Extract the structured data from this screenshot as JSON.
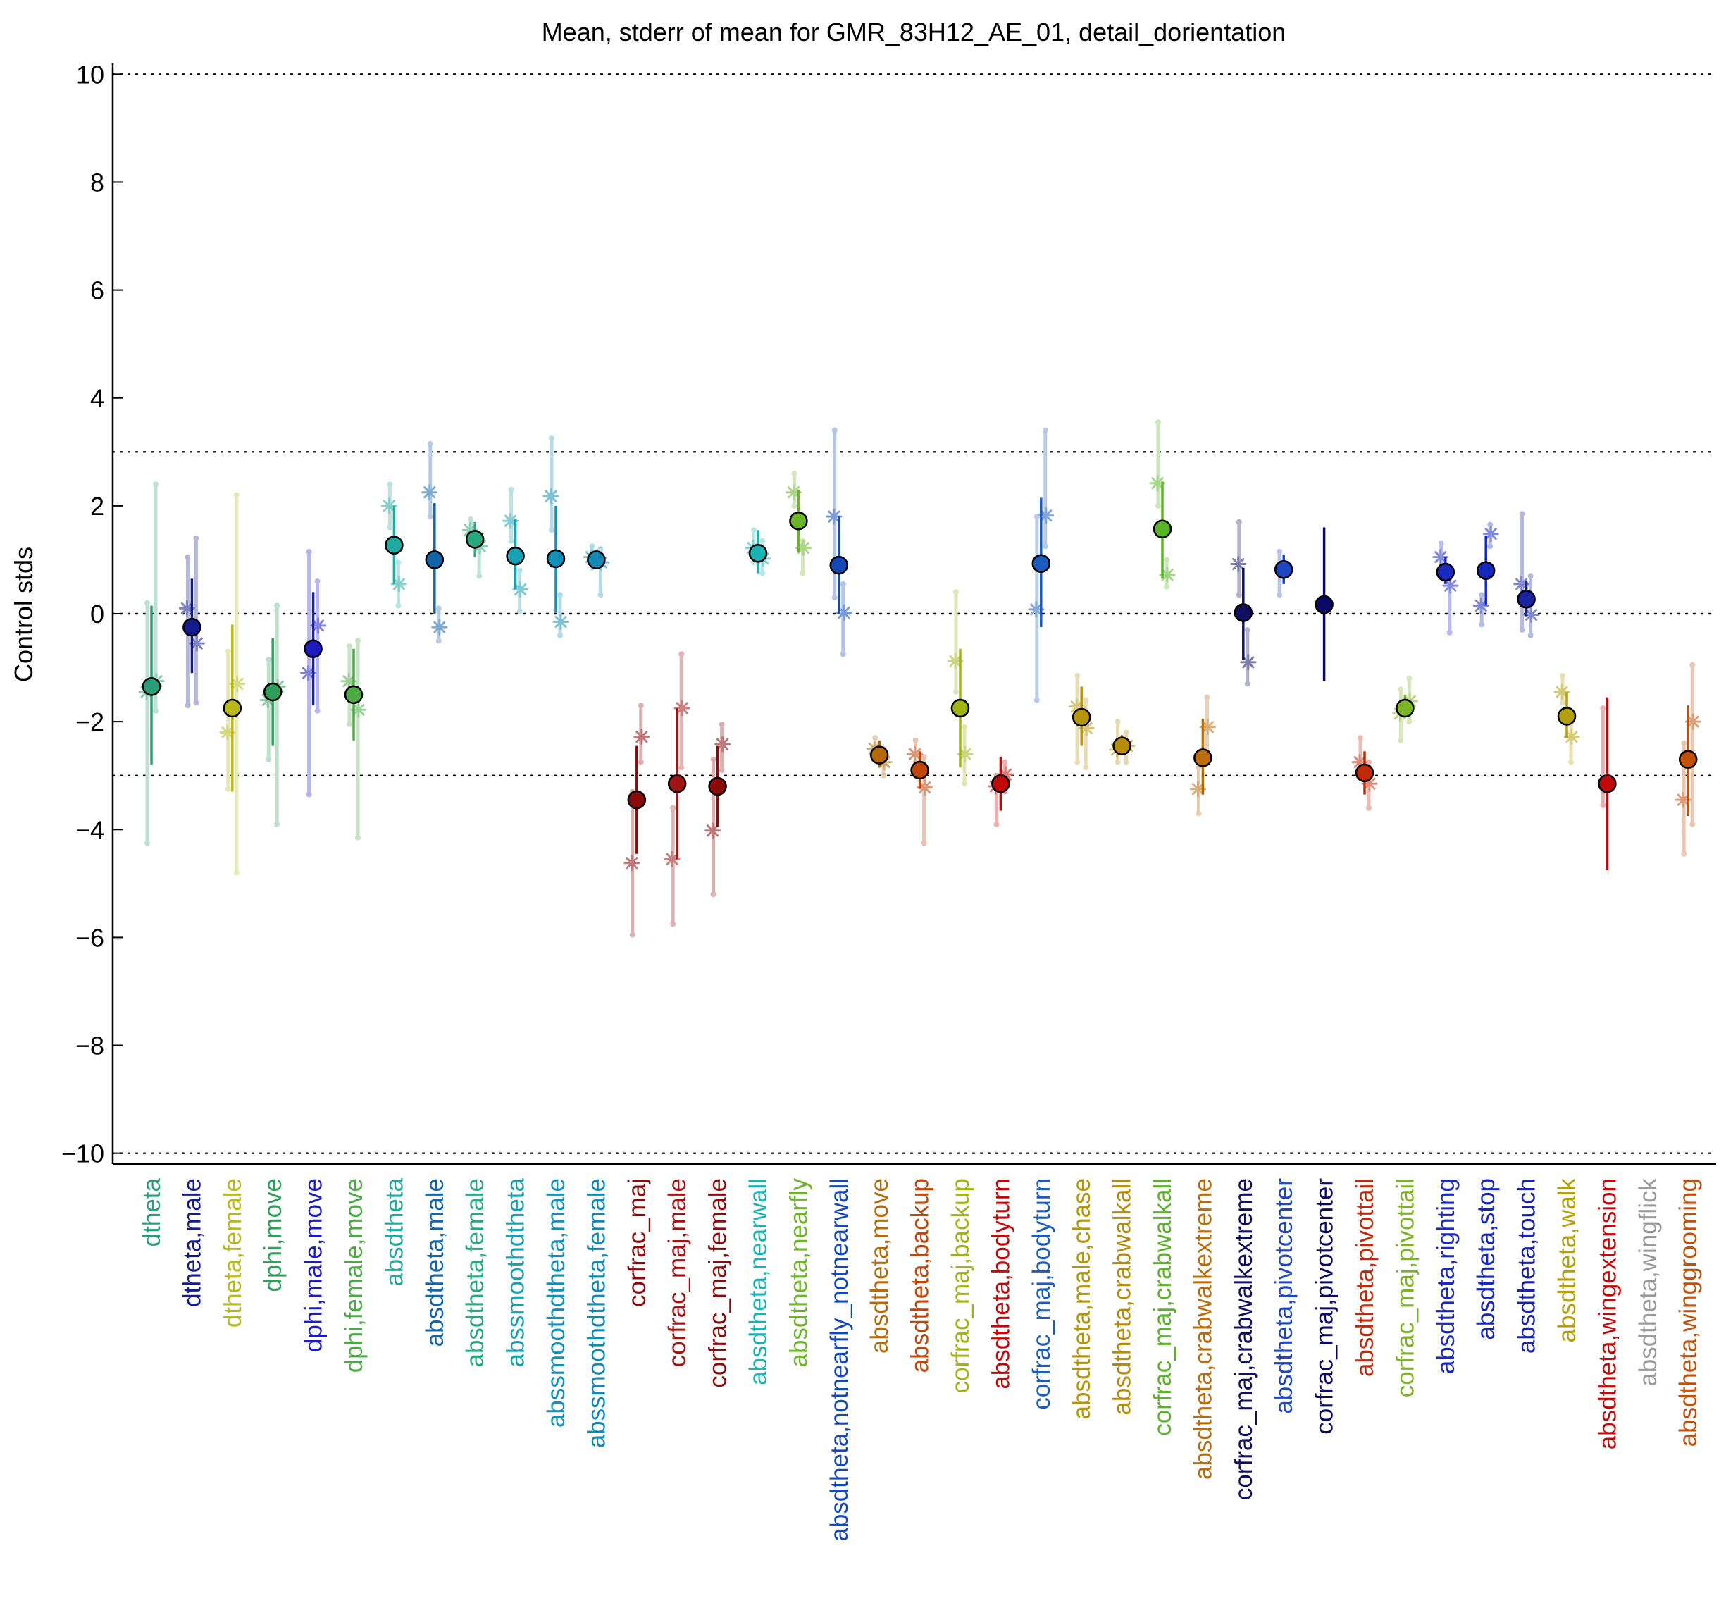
{
  "chart_data": {
    "type": "scatter",
    "title": "Mean, stderr of mean for GMR_83H12_AE_01, detail_dorientation",
    "ylabel": "Control stds",
    "xlabel": "",
    "ylim": [
      -10.2,
      10.2
    ],
    "yticks": [
      -10,
      -8,
      -6,
      -4,
      -2,
      0,
      2,
      4,
      6,
      8,
      10
    ],
    "ytick_labels": [
      "−10",
      "−8",
      "−6",
      "−4",
      "−2",
      "0",
      "2",
      "4",
      "6",
      "8",
      "10"
    ],
    "reference_lines": [
      -10,
      -3,
      0,
      3,
      10
    ],
    "grid": false,
    "legend": "none",
    "categories": [
      "dtheta",
      "dtheta,male",
      "dtheta,female",
      "dphi,move",
      "dphi,male,move",
      "dphi,female,move",
      "absdtheta",
      "absdtheta,male",
      "absdtheta,female",
      "abssmoothdtheta",
      "abssmoothdtheta,male",
      "abssmoothdtheta,female",
      "corfrac_maj",
      "corfrac_maj,male",
      "corfrac_maj,female",
      "absdtheta,nearwall",
      "absdtheta,nearfly",
      "absdtheta,notnearfly_notnearwall",
      "absdtheta,move",
      "absdtheta,backup",
      "corfrac_maj,backup",
      "absdtheta,bodyturn",
      "corfrac_maj,bodyturn",
      "absdtheta,male,chase",
      "absdtheta,crabwalkall",
      "corfrac_maj,crabwalkall",
      "absdtheta,crabwalkextreme",
      "corfrac_maj,crabwalkextreme",
      "absdtheta,pivotcenter",
      "corfrac_maj,pivotcenter",
      "absdtheta,pivottail",
      "corfrac_maj,pivottail",
      "absdtheta,righting",
      "absdtheta,stop",
      "absdtheta,touch",
      "absdtheta,walk",
      "absdtheta,wingextension",
      "absdtheta,wingflick",
      "absdtheta,winggrooming"
    ],
    "colors": [
      "#2a9d7a",
      "#141c8c",
      "#b8b818",
      "#2f9e5a",
      "#1c1cc0",
      "#4caa44",
      "#20aaa0",
      "#1464aa",
      "#28a880",
      "#18a0b4",
      "#1490b8",
      "#1488b4",
      "#8c0a0a",
      "#a01414",
      "#8c0a0a",
      "#18b4b4",
      "#6cb428",
      "#1448b4",
      "#b46a0a",
      "#c0460a",
      "#a0b414",
      "#c00a0a",
      "#1c5cbc",
      "#b4960a",
      "#b48c0a",
      "#5ab428",
      "#bc6c0a",
      "#101060",
      "#1e46c0",
      "#0a0a64",
      "#c02a0a",
      "#7cb428",
      "#1a2ac0",
      "#1428bc",
      "#1a24a0",
      "#b4a00a",
      "#c00a0a",
      "#9a9a9a",
      "#c0500a"
    ],
    "mean": [
      -1.35,
      -0.25,
      -1.75,
      -1.45,
      -0.65,
      -1.5,
      1.27,
      1.0,
      1.38,
      1.07,
      1.02,
      1.0,
      -3.45,
      -3.15,
      -3.2,
      1.12,
      1.72,
      0.9,
      -2.62,
      -2.9,
      -1.75,
      -3.15,
      0.93,
      -1.92,
      -2.45,
      1.57,
      -2.67,
      0.02,
      0.82,
      0.17,
      -2.95,
      -1.75,
      0.77,
      0.8,
      0.27,
      -1.9,
      -3.15,
      null,
      -2.7
    ],
    "err_low": [
      -2.8,
      -1.1,
      -3.3,
      -2.45,
      -1.7,
      -2.35,
      0.55,
      0.0,
      1.05,
      0.45,
      0.02,
      0.9,
      -4.45,
      -4.55,
      -3.95,
      0.75,
      1.15,
      0.0,
      -2.85,
      -3.25,
      -2.85,
      -3.65,
      -0.25,
      -2.45,
      -2.6,
      0.65,
      -3.35,
      -0.85,
      0.55,
      -1.25,
      -3.35,
      -1.85,
      0.55,
      0.15,
      -0.05,
      -2.3,
      -4.75,
      null,
      -3.75
    ],
    "err_high": [
      0.15,
      0.65,
      -0.2,
      -0.45,
      0.4,
      -0.65,
      2.0,
      2.05,
      1.7,
      1.75,
      2.0,
      1.1,
      -2.45,
      -1.75,
      -2.45,
      1.55,
      2.3,
      1.8,
      -2.35,
      -2.55,
      -0.65,
      -2.65,
      2.15,
      -1.35,
      -2.25,
      2.45,
      -1.95,
      0.85,
      1.1,
      1.6,
      -2.55,
      -1.5,
      1.05,
      1.45,
      0.6,
      -1.45,
      -1.55,
      null,
      -1.7
    ],
    "star_a": [
      -1.45,
      0.1,
      -2.2,
      -1.6,
      -1.1,
      -1.25,
      2.0,
      2.25,
      1.55,
      1.72,
      2.18,
      1.05,
      -4.62,
      -4.55,
      -4.02,
      1.22,
      2.25,
      1.8,
      -2.5,
      -2.6,
      -0.88,
      -3.2,
      0.08,
      -1.72,
      -2.52,
      2.42,
      -3.25,
      0.92,
      null,
      null,
      -2.75,
      -1.85,
      1.05,
      0.15,
      0.55,
      -1.45,
      null,
      null,
      -3.45
    ],
    "star_b": [
      -1.25,
      -0.55,
      -1.3,
      -1.35,
      -0.22,
      -1.78,
      0.55,
      -0.25,
      1.25,
      0.45,
      -0.15,
      0.95,
      -2.28,
      -1.75,
      -2.42,
      1.02,
      1.22,
      0.02,
      -2.75,
      -3.22,
      -2.6,
      -2.98,
      1.82,
      -2.12,
      -2.45,
      0.72,
      -2.1,
      -0.9,
      null,
      null,
      -3.15,
      -1.62,
      0.52,
      1.48,
      -0.02,
      -2.28,
      null,
      null,
      -2.0
    ],
    "range_a": [
      [
        -4.25,
        0.2
      ],
      [
        -1.7,
        1.05
      ],
      [
        -3.25,
        -0.7
      ],
      [
        -2.7,
        -0.85
      ],
      [
        -3.35,
        1.15
      ],
      [
        -2.05,
        -0.6
      ],
      [
        1.6,
        2.4
      ],
      [
        1.8,
        3.15
      ],
      [
        1.35,
        1.75
      ],
      [
        1.35,
        2.3
      ],
      [
        1.55,
        3.25
      ],
      [
        0.85,
        1.25
      ],
      [
        -5.95,
        -3.3
      ],
      [
        -5.75,
        -3.6
      ],
      [
        -5.2,
        -2.7
      ],
      [
        0.95,
        1.55
      ],
      [
        2.0,
        2.6
      ],
      [
        0.3,
        3.4
      ],
      [
        -2.65,
        -2.3
      ],
      [
        -2.75,
        -2.35
      ],
      [
        -1.45,
        0.4
      ],
      [
        -3.9,
        -3.0
      ],
      [
        -1.6,
        1.8
      ],
      [
        -2.75,
        -1.15
      ],
      [
        -2.75,
        -2.0
      ],
      [
        2.0,
        3.55
      ],
      [
        -3.7,
        -2.85
      ],
      [
        0.35,
        1.7
      ],
      [
        0.35,
        1.15
      ],
      [
        null,
        null
      ],
      [
        -2.95,
        -2.3
      ],
      [
        -2.35,
        -1.4
      ],
      [
        0.75,
        1.3
      ],
      [
        -0.2,
        0.35
      ],
      [
        -0.3,
        1.85
      ],
      [
        -1.65,
        -1.15
      ],
      [
        -3.55,
        -1.75
      ],
      [
        null,
        null
      ],
      [
        -4.45,
        -2.4
      ]
    ],
    "range_b": [
      [
        -1.8,
        2.4
      ],
      [
        -1.65,
        1.4
      ],
      [
        -4.8,
        2.2
      ],
      [
        -3.9,
        0.15
      ],
      [
        -1.8,
        0.6
      ],
      [
        -4.15,
        -0.5
      ],
      [
        0.15,
        0.95
      ],
      [
        -0.5,
        0.1
      ],
      [
        0.7,
        1.35
      ],
      [
        0.05,
        0.8
      ],
      [
        -0.4,
        0.35
      ],
      [
        0.35,
        1.2
      ],
      [
        -2.75,
        -1.7
      ],
      [
        -2.85,
        -0.75
      ],
      [
        -2.9,
        -2.05
      ],
      [
        0.75,
        1.35
      ],
      [
        0.75,
        1.35
      ],
      [
        -0.75,
        0.55
      ],
      [
        -3.0,
        -2.5
      ],
      [
        -4.25,
        -2.65
      ],
      [
        -3.15,
        -2.1
      ],
      [
        -3.3,
        -2.75
      ],
      [
        1.25,
        3.4
      ],
      [
        -2.85,
        -1.6
      ],
      [
        -2.75,
        -2.2
      ],
      [
        0.5,
        1.0
      ],
      [
        -2.55,
        -1.55
      ],
      [
        -1.3,
        -0.3
      ],
      [
        null,
        null
      ],
      [
        null,
        null
      ],
      [
        -3.6,
        -2.75
      ],
      [
        -2.0,
        -1.2
      ],
      [
        -0.35,
        0.85
      ],
      [
        1.25,
        1.65
      ],
      [
        -0.4,
        0.7
      ],
      [
        -2.75,
        -1.85
      ],
      [
        null,
        null
      ],
      [
        null,
        null
      ],
      [
        -3.9,
        -0.95
      ]
    ]
  }
}
